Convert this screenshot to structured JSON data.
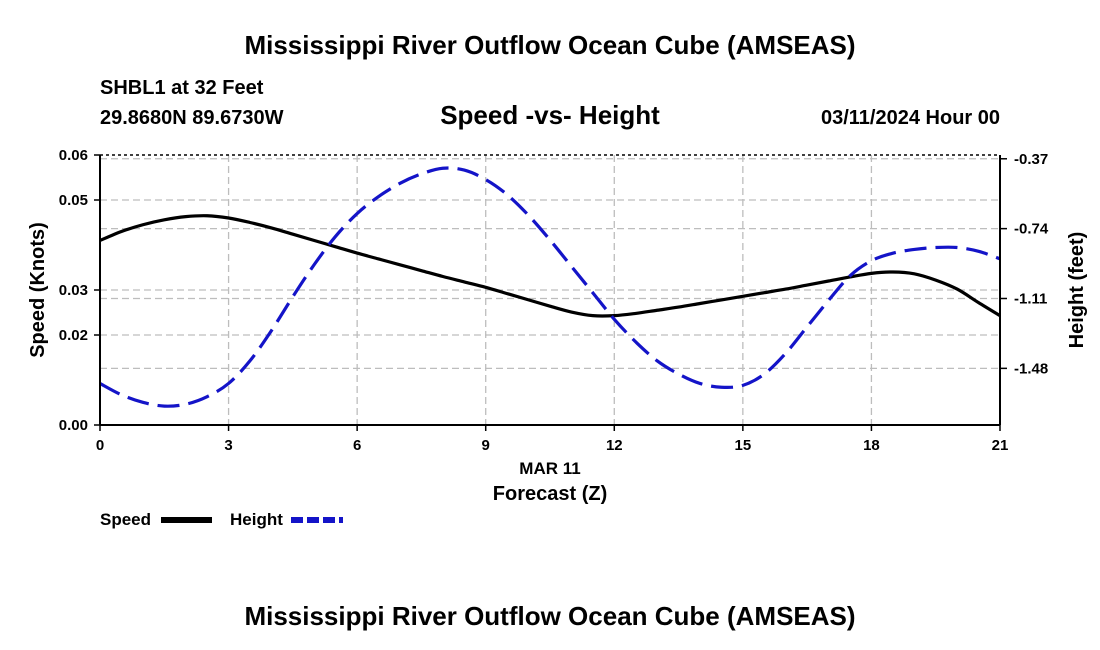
{
  "chart_data": {
    "type": "line",
    "title": "Mississippi River Outflow Ocean Cube (AMSEAS)",
    "footer_title": "Mississippi River Outflow Ocean Cube (AMSEAS)",
    "station": "SHBL1 at 32 Feet",
    "location": "29.8680N  89.6730W",
    "subtitle": "Speed -vs- Height",
    "datetime": "03/11/2024 Hour 00",
    "date_label": "MAR 11",
    "xlabel": "Forecast (Z)",
    "ylabel": "Speed (Knots)",
    "y2label": "Height (feet)",
    "xlim": [
      0,
      21
    ],
    "ylim": [
      0,
      0.06
    ],
    "y2lim": [
      -1.78,
      -0.35
    ],
    "x_ticks": [
      "0",
      "3",
      "6",
      "9",
      "12",
      "15",
      "18",
      "21"
    ],
    "y_ticks": [
      "0.00",
      "0.02",
      "0.03",
      "0.05",
      "0.06"
    ],
    "y2_ticks": [
      "-0.37",
      "-0.74",
      "-1.11",
      "-1.48"
    ],
    "x": [
      0,
      0.5,
      1,
      1.5,
      2,
      2.5,
      3,
      3.5,
      4,
      4.5,
      5,
      5.5,
      6,
      6.5,
      7,
      7.5,
      8,
      8.5,
      9,
      9.5,
      10,
      10.5,
      11,
      11.5,
      12,
      12.5,
      13,
      13.5,
      14,
      14.5,
      15,
      15.5,
      16,
      16.5,
      17,
      17.5,
      18,
      18.5,
      19,
      19.5,
      20,
      20.5,
      21
    ],
    "series": [
      {
        "name": "Speed",
        "color": "#000000",
        "axis": "left",
        "style": "solid",
        "values": [
          0.041,
          0.043,
          0.0445,
          0.0456,
          0.0463,
          0.0465,
          0.046,
          0.045,
          0.0438,
          0.0424,
          0.041,
          0.0396,
          0.0382,
          0.0369,
          0.0356,
          0.0343,
          0.033,
          0.0318,
          0.0306,
          0.0292,
          0.0278,
          0.0264,
          0.0251,
          0.0243,
          0.0243,
          0.0248,
          0.0255,
          0.0262,
          0.027,
          0.0278,
          0.0286,
          0.0294,
          0.0302,
          0.0311,
          0.032,
          0.0329,
          0.0337,
          0.034,
          0.0336,
          0.0322,
          0.0302,
          0.0272,
          0.0243
        ]
      },
      {
        "name": "Height",
        "color": "#1414c8",
        "axis": "right",
        "style": "dashed",
        "values": [
          -1.56,
          -1.62,
          -1.66,
          -1.68,
          -1.67,
          -1.63,
          -1.56,
          -1.44,
          -1.28,
          -1.1,
          -0.93,
          -0.78,
          -0.66,
          -0.57,
          -0.5,
          -0.45,
          -0.42,
          -0.43,
          -0.48,
          -0.56,
          -0.67,
          -0.8,
          -0.94,
          -1.08,
          -1.22,
          -1.34,
          -1.44,
          -1.51,
          -1.56,
          -1.58,
          -1.57,
          -1.51,
          -1.4,
          -1.26,
          -1.12,
          -0.99,
          -0.91,
          -0.87,
          -0.85,
          -0.84,
          -0.84,
          -0.86,
          -0.9
        ]
      }
    ],
    "legend": [
      {
        "label": "Speed",
        "color": "#000000"
      },
      {
        "label": "Height",
        "color": "#1414c8"
      }
    ]
  }
}
